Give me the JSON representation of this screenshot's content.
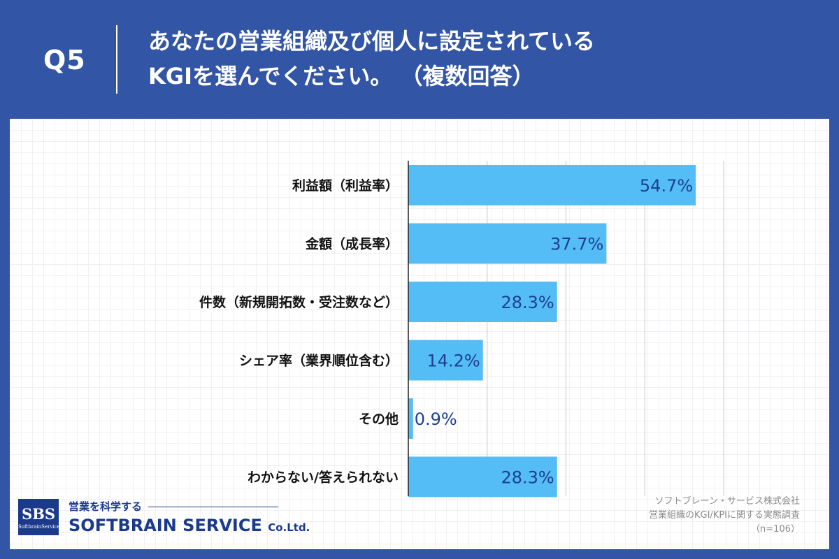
{
  "header": {
    "question_number": "Q5",
    "title_line1": "あなたの営業組織及び個人に設定されている",
    "title_line2": "KGIを選んでください。 （複数回答）"
  },
  "chart_data": {
    "type": "bar",
    "orientation": "horizontal",
    "categories": [
      "利益額（利益率）",
      "金額（成長率）",
      "件数（新規開拓数・受注数など）",
      "シェア率（業界順位含む）",
      "その他",
      "わからない/答えられない"
    ],
    "values": [
      54.7,
      37.7,
      28.3,
      14.2,
      0.9,
      28.3
    ],
    "value_labels": [
      "54.7%",
      "37.7%",
      "28.3%",
      "14.2%",
      "0.9%",
      "28.3%"
    ],
    "xlim": [
      0,
      60
    ],
    "gridline_step": 15,
    "grid": true,
    "bar_color": "#55bdf6",
    "value_label_color": "#1d3f8f"
  },
  "source": {
    "line1": "ソフトブレーン・サービス株式会社",
    "line2": "営業組織のKGI/KPIに関する実態調査",
    "line3": "（n=106）"
  },
  "logo": {
    "mark_text": "SBS",
    "mark_subtext": "SoftbrainService",
    "tagline": "営業を科学する",
    "company_name": "SOFTBRAIN SERVICE",
    "company_suffix": "Co.Ltd."
  },
  "colors": {
    "background": "#3355a5",
    "panel": "#ffffff",
    "logo": "#1b3a8c"
  }
}
